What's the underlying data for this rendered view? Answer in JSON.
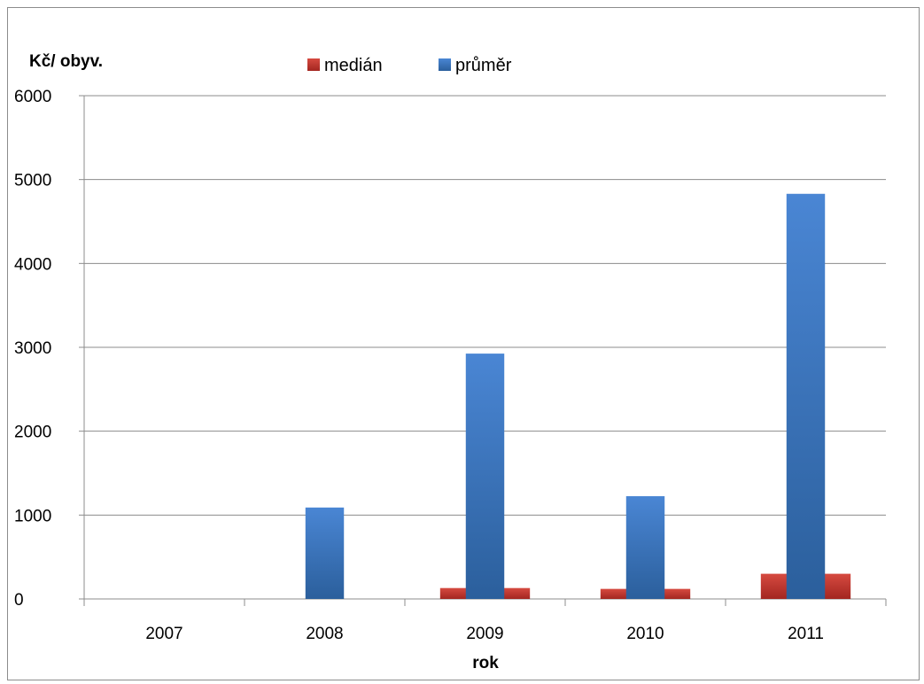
{
  "chart_data": {
    "type": "bar",
    "title": "",
    "ylabel": "Kč/ obyv.",
    "xlabel": "rok",
    "categories": [
      "2007",
      "2008",
      "2009",
      "2010",
      "2011"
    ],
    "series": [
      {
        "name": "medián",
        "values": [
          0,
          0,
          130,
          120,
          300
        ],
        "color": "#c0312b"
      },
      {
        "name": "průměr",
        "values": [
          0,
          1090,
          2925,
          1225,
          4830
        ],
        "color": "#3f7ac5"
      }
    ],
    "ylim": [
      0,
      6000
    ],
    "yticks": [
      0,
      1000,
      2000,
      3000,
      4000,
      5000,
      6000
    ],
    "grid": true,
    "legend_position": "top"
  }
}
